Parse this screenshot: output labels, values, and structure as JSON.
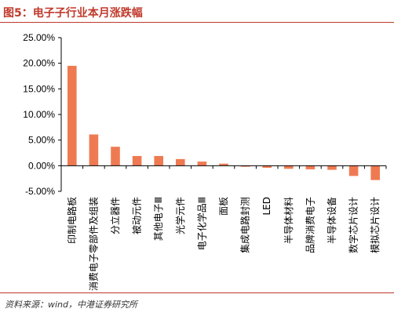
{
  "figure_title": "图5：电子子行业本月涨跌幅",
  "source": "资料来源：wind，中港证券研究所",
  "colors": {
    "bar": "#ef7a52",
    "title": "#c0392b"
  },
  "chart_data": {
    "type": "bar",
    "categories": [
      "印制电路板",
      "消费电子零部件及组装",
      "分立器件",
      "被动元件",
      "其他电子Ⅲ",
      "光学元件",
      "电子化学品Ⅲ",
      "面板",
      "集成电路封测",
      "LED",
      "半导体材料",
      "品牌消费电子",
      "半导体设备",
      "数字芯片设计",
      "模拟芯片设计"
    ],
    "values": [
      19.5,
      6.1,
      3.7,
      1.9,
      1.9,
      1.3,
      0.8,
      0.4,
      -0.2,
      -0.4,
      -0.6,
      -0.7,
      -0.8,
      -2.0,
      -2.8
    ],
    "ylim": [
      -5,
      25
    ],
    "yticks": [
      -5,
      0,
      5,
      10,
      15,
      20,
      25
    ],
    "ytick_labels": [
      "-5.00%",
      "0.00%",
      "5.00%",
      "10.00%",
      "15.00%",
      "20.00%",
      "25.00%"
    ],
    "title": "",
    "xlabel": "",
    "ylabel": ""
  }
}
